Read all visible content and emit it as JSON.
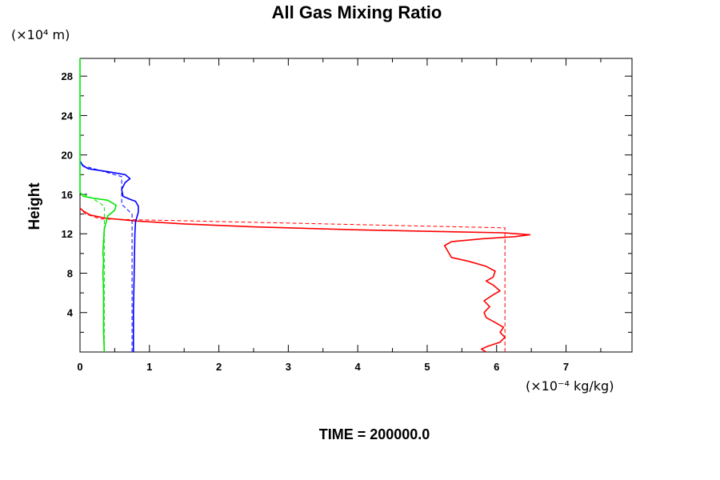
{
  "chart_data": {
    "type": "line",
    "title": "All Gas Mixing Ratio",
    "ylabel": "Height",
    "y_unit_label": "(×10⁴ m)",
    "x_unit_label": "(×10⁻⁴ kg/kg)",
    "footer": "TIME = 200000.0",
    "xlim": [
      0,
      7.95
    ],
    "ylim": [
      0,
      29.8
    ],
    "x_ticks": [
      0,
      1,
      2,
      3,
      4,
      5,
      6,
      7
    ],
    "x_tick_labels": [
      "0",
      "1",
      "2",
      "3",
      "4",
      "5",
      "6",
      "7"
    ],
    "y_ticks": [
      4,
      8,
      12,
      16,
      20,
      24,
      28
    ],
    "y_tick_labels": [
      "4",
      "8",
      "12",
      "16",
      "20",
      "24",
      "28"
    ],
    "grid": false,
    "series": [
      {
        "color": "#ff0000",
        "style": "solid",
        "points": [
          [
            5.85,
            0.0
          ],
          [
            5.78,
            0.3
          ],
          [
            5.88,
            0.6
          ],
          [
            6.05,
            1.0
          ],
          [
            6.12,
            1.5
          ],
          [
            6.05,
            2.0
          ],
          [
            6.1,
            2.5
          ],
          [
            5.98,
            3.0
          ],
          [
            5.85,
            3.5
          ],
          [
            5.82,
            4.0
          ],
          [
            5.9,
            4.6
          ],
          [
            5.82,
            5.2
          ],
          [
            5.95,
            5.8
          ],
          [
            6.05,
            6.2
          ],
          [
            5.95,
            6.8
          ],
          [
            5.85,
            7.2
          ],
          [
            5.95,
            7.6
          ],
          [
            5.98,
            8.2
          ],
          [
            5.85,
            8.7
          ],
          [
            5.6,
            9.2
          ],
          [
            5.35,
            9.6
          ],
          [
            5.3,
            10.2
          ],
          [
            5.25,
            10.8
          ],
          [
            5.35,
            11.2
          ],
          [
            5.8,
            11.5
          ],
          [
            6.25,
            11.7
          ],
          [
            6.48,
            11.9
          ],
          [
            6.1,
            12.1
          ],
          [
            5.4,
            12.2
          ],
          [
            4.0,
            12.4
          ],
          [
            2.5,
            12.7
          ],
          [
            1.5,
            13.0
          ],
          [
            0.8,
            13.3
          ],
          [
            0.35,
            13.6
          ],
          [
            0.15,
            13.9
          ],
          [
            0.05,
            14.3
          ],
          [
            0.0,
            14.6
          ]
        ]
      },
      {
        "color": "#ff0000",
        "style": "dashed",
        "points": [
          [
            6.12,
            0.0
          ],
          [
            6.12,
            12.6
          ],
          [
            0.3,
            13.5
          ],
          [
            0.08,
            14.0
          ],
          [
            0.0,
            14.6
          ]
        ]
      },
      {
        "color": "#0000ff",
        "style": "solid",
        "points": [
          [
            0.77,
            0.0
          ],
          [
            0.77,
            4.0
          ],
          [
            0.78,
            8.0
          ],
          [
            0.79,
            12.0
          ],
          [
            0.8,
            13.2
          ],
          [
            0.84,
            14.2
          ],
          [
            0.84,
            14.8
          ],
          [
            0.8,
            15.3
          ],
          [
            0.72,
            15.5
          ],
          [
            0.62,
            15.8
          ],
          [
            0.6,
            16.5
          ],
          [
            0.65,
            17.2
          ],
          [
            0.72,
            17.6
          ],
          [
            0.65,
            18.0
          ],
          [
            0.4,
            18.3
          ],
          [
            0.12,
            18.6
          ],
          [
            0.04,
            18.9
          ],
          [
            0.0,
            19.4
          ]
        ]
      },
      {
        "color": "#0000ff",
        "style": "dashed",
        "points": [
          [
            0.75,
            0.0
          ],
          [
            0.75,
            14.0
          ],
          [
            0.6,
            15.0
          ],
          [
            0.6,
            17.8
          ],
          [
            0.3,
            18.4
          ],
          [
            0.05,
            18.9
          ],
          [
            0.0,
            19.4
          ]
        ]
      },
      {
        "color": "#00e600",
        "style": "solid",
        "points": [
          [
            0.0,
            29.8
          ],
          [
            0.0,
            16.2
          ],
          [
            0.05,
            15.8
          ],
          [
            0.2,
            15.6
          ],
          [
            0.4,
            15.4
          ],
          [
            0.52,
            14.9
          ],
          [
            0.5,
            14.4
          ],
          [
            0.4,
            13.8
          ],
          [
            0.35,
            12.5
          ],
          [
            0.33,
            10.0
          ],
          [
            0.34,
            9.3
          ],
          [
            0.33,
            8.0
          ],
          [
            0.34,
            6.0
          ],
          [
            0.34,
            4.0
          ],
          [
            0.34,
            2.0
          ],
          [
            0.35,
            0.0
          ]
        ]
      },
      {
        "color": "#00e600",
        "style": "dashed",
        "points": [
          [
            0.35,
            0.0
          ],
          [
            0.35,
            14.8
          ],
          [
            0.18,
            15.6
          ],
          [
            0.05,
            16.0
          ],
          [
            0.0,
            16.2
          ]
        ]
      }
    ]
  }
}
